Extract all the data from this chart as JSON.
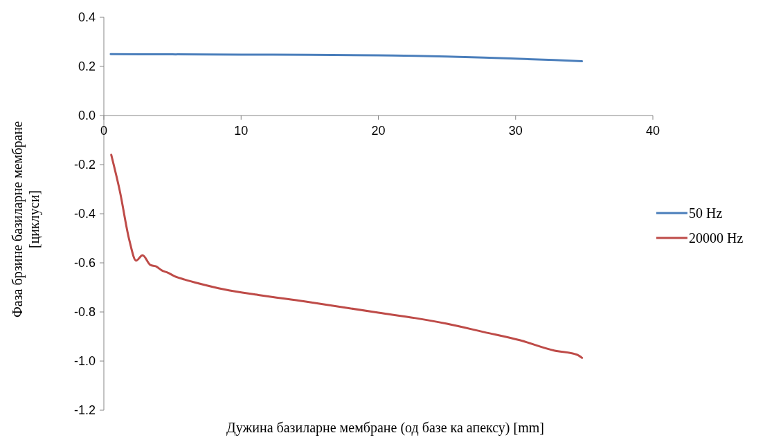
{
  "chart_data": {
    "type": "line",
    "xlabel": "Дужина базиларне мембране (од базе ка апексу) [mm]",
    "ylabel": "Фаза брзине базиларне мембране [циклуси]",
    "xlim": [
      0,
      40
    ],
    "xticks": [
      0,
      10,
      20,
      30,
      40
    ],
    "ylim": [
      -1.2,
      0.4
    ],
    "yticks": [
      {
        "value": -1.2,
        "label": "-1.2"
      },
      {
        "value": -1,
        "label": "-1.0"
      },
      {
        "value": -0.8,
        "label": "-0.8"
      },
      {
        "value": -0.6,
        "label": "-0.6"
      },
      {
        "value": -0.4,
        "label": "-0.4"
      },
      {
        "value": -0.2,
        "label": "-0.2"
      },
      {
        "value": 0,
        "label": "0.0"
      },
      {
        "value": 0.2,
        "label": "0.2"
      },
      {
        "value": 0.4,
        "label": "0.4"
      }
    ],
    "grid": false,
    "legend": "right",
    "marker": "none",
    "line_style": "solid",
    "series": [
      {
        "name": "50 Hz",
        "color": "#4a7ebb",
        "x": [
          0.5,
          5,
          10,
          15,
          20,
          22.7,
          25,
          27.7,
          30.3,
          32.8,
          34.84
        ],
        "values": [
          0.25,
          0.249,
          0.248,
          0.247,
          0.245,
          0.243,
          0.24,
          0.236,
          0.231,
          0.226,
          0.221
        ]
      },
      {
        "name": "20000 Hz",
        "color": "#be4b48",
        "x": [
          0.54,
          1.17,
          1.85,
          2.35,
          2.82,
          3.4,
          3.78,
          4.29,
          4.62,
          5.13,
          5.88,
          7.06,
          8.74,
          11.26,
          14.63,
          20,
          22.7,
          25,
          27.7,
          30.3,
          32.8,
          34.47,
          34.84
        ],
        "values": [
          -0.16,
          -0.309,
          -0.506,
          -0.591,
          -0.569,
          -0.609,
          -0.614,
          -0.633,
          -0.639,
          -0.654,
          -0.668,
          -0.686,
          -0.708,
          -0.731,
          -0.757,
          -0.803,
          -0.825,
          -0.848,
          -0.882,
          -0.915,
          -0.957,
          -0.974,
          -0.987
        ]
      }
    ]
  }
}
